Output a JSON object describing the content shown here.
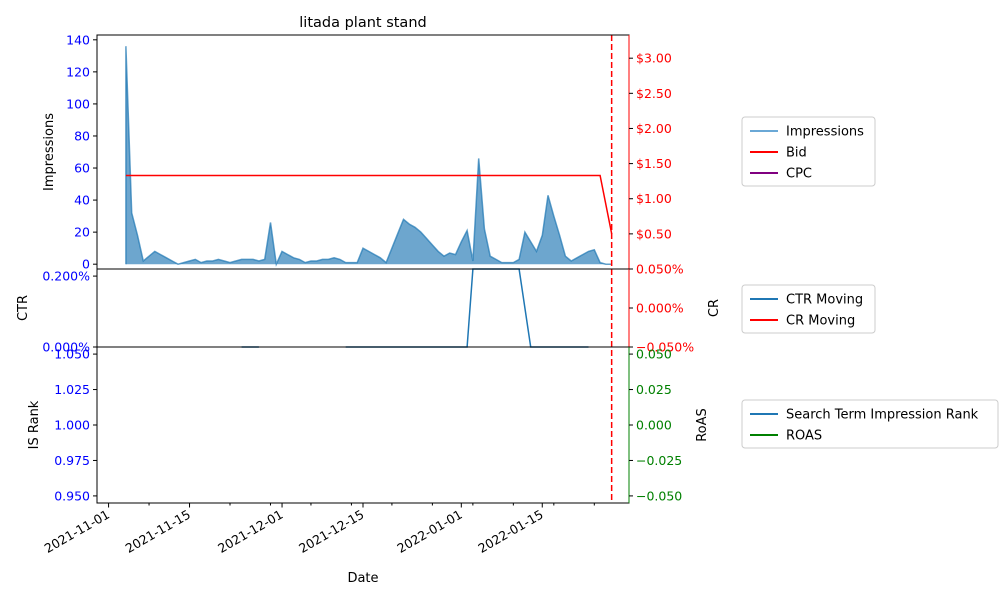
{
  "chart_data": {
    "type": "line",
    "title": "litada plant stand",
    "xlabel": "Date",
    "x_range": [
      "2021-10-30",
      "2022-01-30"
    ],
    "x_ticks": [
      "2021-11-01",
      "2021-11-15",
      "2021-12-01",
      "2021-12-15",
      "2022-01-01",
      "2022-01-15"
    ],
    "marker_date": "2022-01-27",
    "panels": [
      {
        "name": "impressions-panel",
        "ylabel_left": "Impressions",
        "ylim_left": [
          -3,
          143
        ],
        "yticks_left": [
          0,
          20,
          40,
          60,
          80,
          100,
          120,
          140
        ],
        "ylim_right": [
          0,
          3.33
        ],
        "yticks_right": [
          "$0.50",
          "$1.00",
          "$1.50",
          "$2.00",
          "$2.50",
          "$3.00"
        ],
        "yticks_right_values": [
          0.5,
          1.0,
          1.5,
          2.0,
          2.5,
          3.0
        ],
        "legend": [
          "Impressions",
          "Bid",
          "CPC"
        ],
        "series": [
          {
            "name": "Impressions",
            "color": "#1f77b4",
            "x": [
              "2021-11-04",
              "2021-11-04",
              "2021-11-05",
              "2021-11-06",
              "2021-11-07",
              "2021-11-08",
              "2021-11-09",
              "2021-11-10",
              "2021-11-11",
              "2021-11-12",
              "2021-11-13",
              "2021-11-14",
              "2021-11-15",
              "2021-11-16",
              "2021-11-17",
              "2021-11-18",
              "2021-11-19",
              "2021-11-20",
              "2021-11-21",
              "2021-11-22",
              "2021-11-23",
              "2021-11-24",
              "2021-11-25",
              "2021-11-26",
              "2021-11-27",
              "2021-11-28",
              "2021-11-29",
              "2021-11-30",
              "2021-12-01",
              "2021-12-02",
              "2021-12-03",
              "2021-12-04",
              "2021-12-05",
              "2021-12-06",
              "2021-12-07",
              "2021-12-08",
              "2021-12-09",
              "2021-12-10",
              "2021-12-11",
              "2021-12-12",
              "2021-12-13",
              "2021-12-14",
              "2021-12-15",
              "2021-12-16",
              "2021-12-17",
              "2021-12-18",
              "2021-12-19",
              "2021-12-20",
              "2021-12-21",
              "2021-12-22",
              "2021-12-23",
              "2021-12-24",
              "2021-12-25",
              "2021-12-26",
              "2021-12-27",
              "2021-12-28",
              "2021-12-29",
              "2021-12-30",
              "2021-12-31",
              "2022-01-01",
              "2022-01-02",
              "2022-01-03",
              "2022-01-04",
              "2022-01-05",
              "2022-01-06",
              "2022-01-07",
              "2022-01-08",
              "2022-01-09",
              "2022-01-10",
              "2022-01-11",
              "2022-01-12",
              "2022-01-13",
              "2022-01-14",
              "2022-01-15",
              "2022-01-16",
              "2022-01-17",
              "2022-01-18",
              "2022-01-19",
              "2022-01-20",
              "2022-01-21",
              "2022-01-22",
              "2022-01-23",
              "2022-01-24",
              "2022-01-25",
              "2022-01-26",
              "2022-01-27"
            ],
            "values": [
              0,
              136,
              32,
              18,
              2,
              5,
              8,
              6,
              4,
              2,
              0,
              1,
              2,
              3,
              1,
              2,
              2,
              3,
              2,
              1,
              2,
              3,
              3,
              3,
              2,
              3,
              26,
              0,
              8,
              6,
              4,
              3,
              1,
              2,
              2,
              3,
              3,
              4,
              3,
              1,
              1,
              1,
              10,
              8,
              6,
              4,
              1,
              10,
              19,
              28,
              25,
              23,
              20,
              16,
              12,
              8,
              5,
              7,
              6,
              14,
              21,
              2,
              66,
              22,
              5,
              3,
              1,
              1,
              1,
              3,
              20,
              14,
              8,
              18,
              43,
              30,
              18,
              5,
              2,
              4,
              6,
              8,
              9,
              1,
              0,
              0
            ]
          },
          {
            "name": "Bid",
            "color": "#ff0000",
            "x": [
              "2021-11-04",
              "2022-01-25",
              "2022-01-27"
            ],
            "values": [
              1.33,
              1.33,
              0.5
            ]
          },
          {
            "name": "CPC",
            "color": "#800080",
            "x": [],
            "values": []
          }
        ]
      },
      {
        "name": "ctr-panel",
        "ylabel_left": "CTR",
        "ylabel_right": "CR",
        "yticks_left": [
          "0.000%",
          "0.200%"
        ],
        "yticks_left_values": [
          0,
          0.2
        ],
        "ylim_left": [
          0,
          0.22
        ],
        "yticks_right": [
          "−0.050%",
          "0.000%",
          "0.050%"
        ],
        "yticks_right_values": [
          -0.05,
          0,
          0.05
        ],
        "ylim_right": [
          -0.05,
          0.05
        ],
        "legend": [
          "CTR Moving",
          "CR Moving"
        ],
        "series": [
          {
            "name": "CTR Moving",
            "color": "#1f77b4",
            "segments": [
              {
                "x": [
                  "2021-11-24",
                  "2021-11-27"
                ],
                "values": [
                  0,
                  0
                ]
              },
              {
                "x": [
                  "2021-12-12",
                  "2022-01-02",
                  "2022-01-03",
                  "2022-01-11",
                  "2022-01-13",
                  "2022-01-23"
                ],
                "values": [
                  0,
                  0,
                  0.22,
                  0.22,
                  0,
                  0
                ]
              }
            ]
          },
          {
            "name": "CR Moving",
            "color": "#ff0000",
            "segments": []
          }
        ]
      },
      {
        "name": "rank-panel",
        "ylabel_left": "IS Rank",
        "ylabel_right": "RoAS",
        "yticks_left": [
          "0.950",
          "0.975",
          "1.000",
          "1.025",
          "1.050"
        ],
        "yticks_left_values": [
          0.95,
          0.975,
          1.0,
          1.025,
          1.05
        ],
        "ylim_left": [
          0.945,
          1.055
        ],
        "yticks_right": [
          "−0.050",
          "−0.025",
          "0.000",
          "0.025",
          "0.050"
        ],
        "yticks_right_values": [
          -0.05,
          -0.025,
          0,
          0.025,
          0.05
        ],
        "ylim_right": [
          -0.055,
          0.055
        ],
        "legend": [
          "Search Term Impression Rank",
          "ROAS"
        ],
        "series": [
          {
            "name": "Search Term Impression Rank",
            "color": "#1f77b4",
            "x": [],
            "values": []
          },
          {
            "name": "ROAS",
            "color": "#008000",
            "x": [],
            "values": []
          }
        ]
      }
    ]
  }
}
